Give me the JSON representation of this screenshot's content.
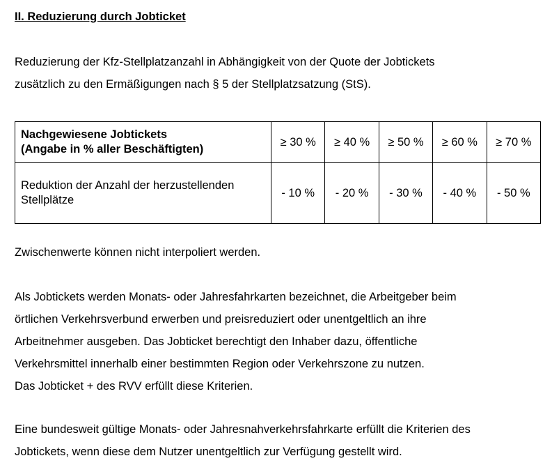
{
  "heading": "II. Reduzierung durch Jobticket",
  "intro": [
    "Reduzierung der Kfz-Stellplatzanzahl in Abhängigkeit von der Quote der Jobtickets",
    "zusätzlich zu den Ermäßigungen nach § 5 der Stellplatzsatzung (StS)."
  ],
  "table": {
    "header_label": [
      "Nachgewiesene Jobtickets",
      "(Angabe in % aller Beschäftigten)"
    ],
    "thresholds": [
      "≥ 30 %",
      "≥ 40 %",
      "≥ 50 %",
      "≥ 60 %",
      "≥ 70 %"
    ],
    "row_label": [
      "Reduktion der Anzahl der herzustellenden",
      "Stellplätze"
    ],
    "reductions": [
      "- 10 %",
      "- 20 %",
      "- 30 %",
      "- 40 %",
      "- 50 %"
    ]
  },
  "note": "Zwischenwerte können nicht interpoliert werden.",
  "definition": [
    "Als Jobtickets werden Monats- oder Jahresfahrkarten bezeichnet, die Arbeitgeber beim",
    "örtlichen Verkehrsverbund erwerben und preisreduziert oder unentgeltlich an ihre",
    "Arbeitnehmer ausgeben. Das Jobticket berechtigt den Inhaber dazu, öffentliche",
    "Verkehrsmittel innerhalb einer bestimmten Region oder Verkehrszone zu nutzen.",
    "Das Jobticket + des RVV erfüllt diese Kriterien."
  ],
  "final": [
    "Eine bundesweit gültige Monats- oder Jahresnahverkehrsfahrkarte erfüllt die Kriterien des",
    "Jobtickets, wenn diese dem Nutzer unentgeltlich zur Verfügung gestellt wird."
  ]
}
